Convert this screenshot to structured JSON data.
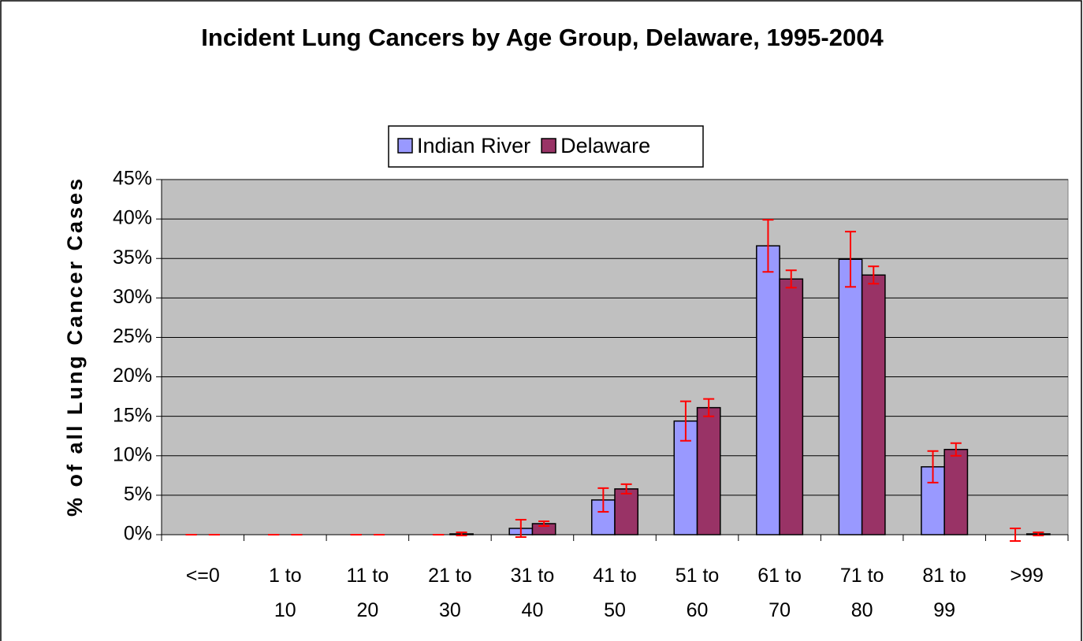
{
  "chart_data": {
    "type": "bar",
    "title": "Incident Lung Cancers by Age Group, Delaware, 1995-2004",
    "y_label": "% of all Lung Cancer Cases",
    "categories": [
      "<=0",
      "1 to 10",
      "11 to 20",
      "21 to 30",
      "31 to 40",
      "41 to 50",
      "51 to 60",
      "61 to 70",
      "71 to 80",
      "81 to 99",
      ">99"
    ],
    "series": [
      {
        "name": "Indian River",
        "color": "#9999ff",
        "values": [
          0,
          0,
          0,
          0,
          0.8,
          4.4,
          14.4,
          36.6,
          34.9,
          8.6,
          0
        ],
        "errors": [
          0,
          0,
          0,
          0,
          1.1,
          1.5,
          2.5,
          3.3,
          3.5,
          2.0,
          0.8
        ]
      },
      {
        "name": "Delaware",
        "color": "#993366",
        "values": [
          0,
          0,
          0,
          0.1,
          1.4,
          5.8,
          16.1,
          32.4,
          32.9,
          10.8,
          0.1
        ],
        "errors": [
          0,
          0,
          0,
          0.2,
          0.3,
          0.6,
          1.1,
          1.1,
          1.1,
          0.8,
          0.2
        ]
      }
    ],
    "error_color": "#ff0000",
    "plot_background": "#c0c0c0",
    "ylim": [
      0,
      45
    ],
    "yticks": [
      {
        "value": 0,
        "label": "0%"
      },
      {
        "value": 5,
        "label": "5%"
      },
      {
        "value": 10,
        "label": "10%"
      },
      {
        "value": 15,
        "label": "15%"
      },
      {
        "value": 20,
        "label": "20%"
      },
      {
        "value": 25,
        "label": "25%"
      },
      {
        "value": 30,
        "label": "30%"
      },
      {
        "value": 35,
        "label": "35%"
      },
      {
        "value": 40,
        "label": "40%"
      },
      {
        "value": 45,
        "label": "45%"
      }
    ],
    "grid": true,
    "legend": "top"
  }
}
